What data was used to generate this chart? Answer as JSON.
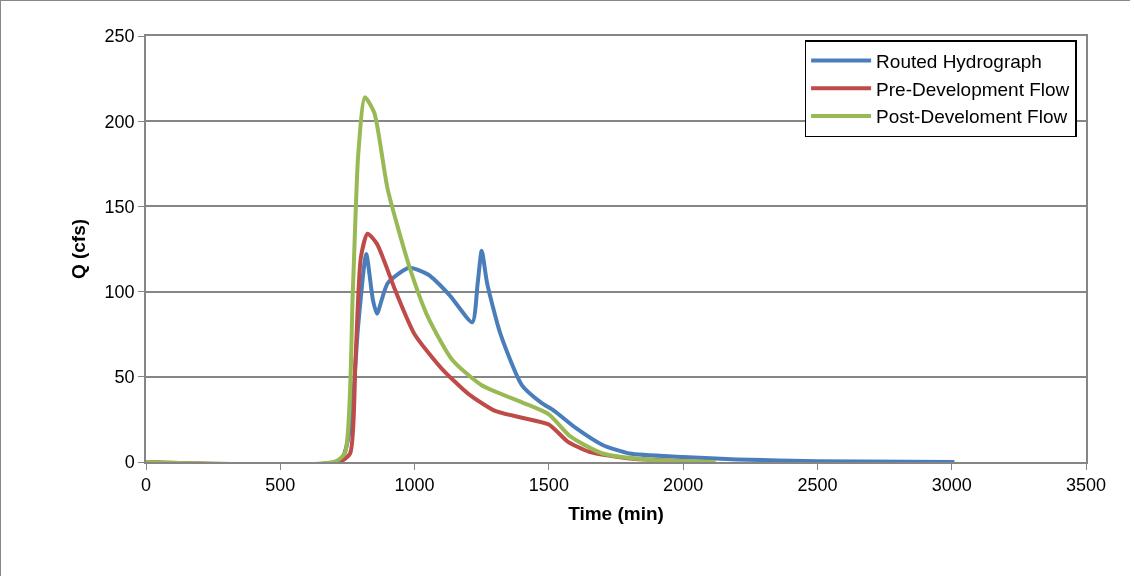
{
  "chart_data": {
    "type": "line",
    "xlabel": "Time (min)",
    "ylabel": "Q (cfs)",
    "xlim": [
      0,
      3500
    ],
    "xticks": [
      0,
      500,
      1000,
      1500,
      2000,
      2500,
      3000,
      3500
    ],
    "ylim": [
      0,
      250
    ],
    "yticks": [
      0,
      50,
      100,
      150,
      200,
      250
    ],
    "grid": "y",
    "legend": "top right",
    "marker": "none",
    "line_style": "solid",
    "series": [
      {
        "name": "Routed Hydrograph",
        "color": "#4a7ebb",
        "x": [
          0,
          720,
          760,
          790,
          820,
          845,
          860,
          900,
          980,
          1050,
          1130,
          1215,
          1235,
          1250,
          1270,
          1320,
          1400,
          1470,
          1520,
          1600,
          1700,
          1800,
          2000,
          2200,
          2500,
          3010
        ],
        "values": [
          0,
          0,
          20,
          80,
          122,
          95,
          87,
          105,
          114,
          110,
          98,
          82,
          105,
          124,
          105,
          75,
          45,
          35,
          30,
          20,
          10,
          5,
          3,
          1.5,
          0.5,
          0
        ]
      },
      {
        "name": "Pre-Development Flow",
        "color": "#be4b48",
        "x": [
          0,
          720,
          760,
          780,
          800,
          825,
          860,
          930,
          1000,
          1100,
          1200,
          1300,
          1400,
          1500,
          1570,
          1650,
          1800,
          2000,
          2120
        ],
        "values": [
          0,
          0,
          5,
          60,
          120,
          134,
          128,
          100,
          75,
          55,
          40,
          30,
          26,
          22,
          12,
          6,
          2,
          0.5,
          0
        ]
      },
      {
        "name": "Post-Develoment Flow",
        "color": "#98b954",
        "x": [
          0,
          700,
          740,
          770,
          790,
          815,
          850,
          900,
          980,
          1050,
          1140,
          1250,
          1400,
          1500,
          1580,
          1700,
          1900,
          2120
        ],
        "values": [
          0,
          0,
          5,
          100,
          180,
          214,
          205,
          160,
          115,
          85,
          60,
          45,
          35,
          28,
          15,
          5,
          1,
          0
        ]
      }
    ]
  }
}
